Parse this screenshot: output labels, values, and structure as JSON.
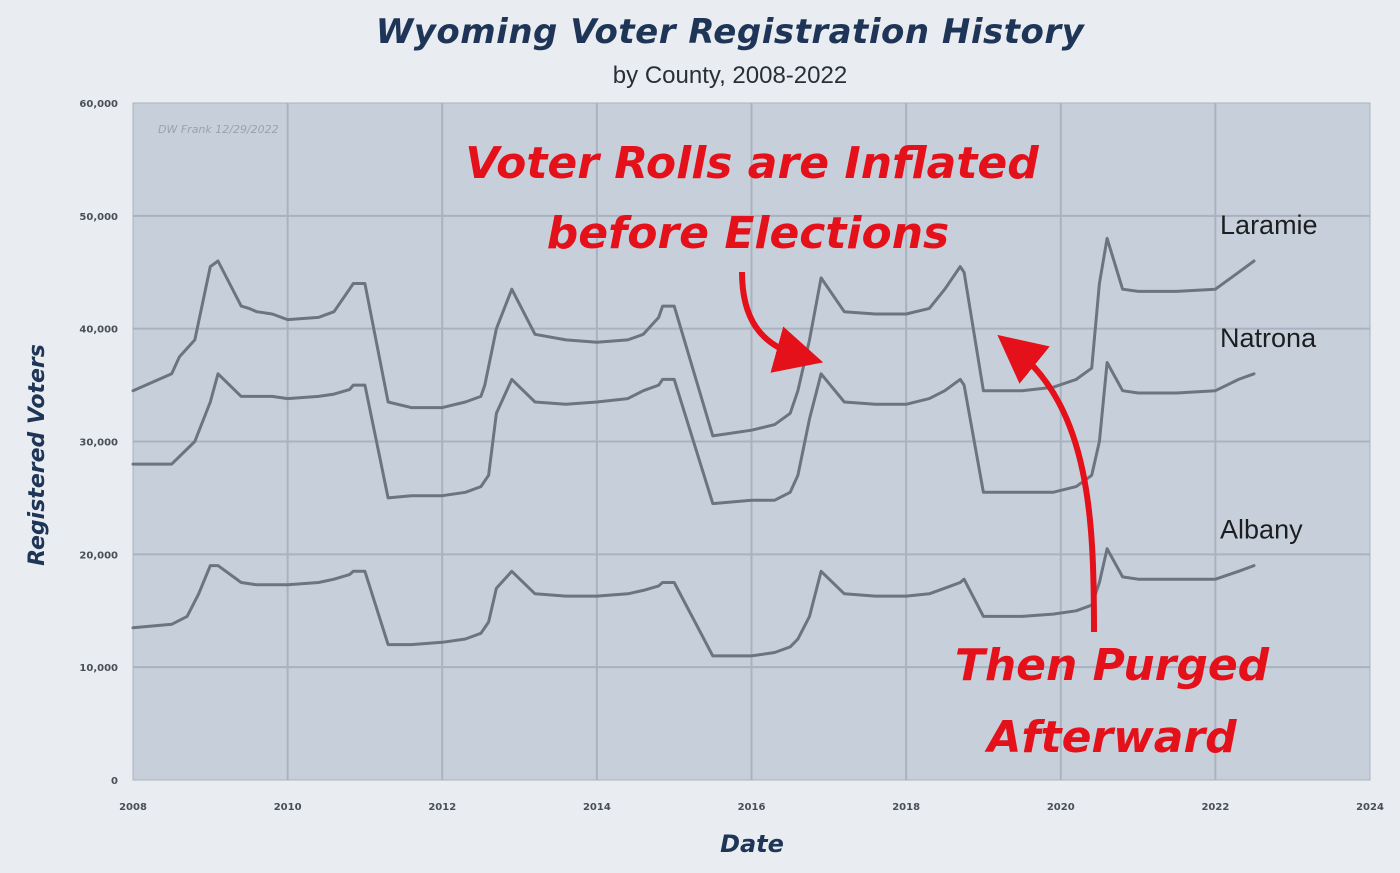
{
  "chart_data": {
    "type": "line",
    "title": "Wyoming Voter Registration History",
    "subtitle": "by County, 2008-2022",
    "xlabel": "Date",
    "ylabel": "Registered Voters",
    "x_ticks": [
      "2008",
      "2010",
      "2012",
      "2014",
      "2016",
      "2018",
      "2020",
      "2022",
      "2024"
    ],
    "y_ticks": [
      "0",
      "10,000",
      "20,000",
      "30,000",
      "40,000",
      "50,000",
      "60,000"
    ],
    "xlim": [
      2008,
      2024
    ],
    "ylim": [
      0,
      60000
    ],
    "grid": true,
    "note": "DW Frank 12/29/2022",
    "series": [
      {
        "name": "Laramie",
        "x": [
          2008.0,
          2008.5,
          2008.6,
          2008.8,
          2009.0,
          2009.1,
          2009.4,
          2009.5,
          2009.6,
          2009.8,
          2010.0,
          2010.4,
          2010.6,
          2010.8,
          2010.85,
          2011.0,
          2011.3,
          2011.6,
          2012.0,
          2012.3,
          2012.5,
          2012.55,
          2012.7,
          2012.9,
          2013.2,
          2013.6,
          2014.0,
          2014.4,
          2014.6,
          2014.8,
          2014.85,
          2015.0,
          2015.5,
          2016.0,
          2016.3,
          2016.5,
          2016.6,
          2016.75,
          2016.9,
          2017.2,
          2017.6,
          2018.0,
          2018.3,
          2018.5,
          2018.7,
          2018.75,
          2019.0,
          2019.5,
          2019.9,
          2020.2,
          2020.4,
          2020.5,
          2020.6,
          2020.8,
          2021.0,
          2021.5,
          2022.0,
          2022.3,
          2022.5
        ],
        "values": [
          34500,
          36000,
          37500,
          39000,
          45500,
          46000,
          42000,
          41800,
          41500,
          41300,
          40800,
          41000,
          41500,
          43500,
          44000,
          44000,
          33500,
          33000,
          33000,
          33500,
          34000,
          35000,
          40000,
          43500,
          39500,
          39000,
          38800,
          39000,
          39500,
          41000,
          42000,
          42000,
          30500,
          31000,
          31500,
          32500,
          34500,
          39000,
          44500,
          41500,
          41300,
          41300,
          41800,
          43500,
          45500,
          45000,
          34500,
          34500,
          34800,
          35500,
          36500,
          44000,
          48000,
          43500,
          43300,
          43300,
          43500,
          45000,
          46000
        ]
      },
      {
        "name": "Natrona",
        "x": [
          2008.0,
          2008.5,
          2008.8,
          2009.0,
          2009.1,
          2009.4,
          2009.6,
          2009.8,
          2010.0,
          2010.4,
          2010.6,
          2010.8,
          2010.85,
          2011.0,
          2011.3,
          2011.6,
          2012.0,
          2012.3,
          2012.5,
          2012.6,
          2012.7,
          2012.9,
          2013.2,
          2013.6,
          2014.0,
          2014.4,
          2014.6,
          2014.8,
          2014.85,
          2015.0,
          2015.5,
          2016.0,
          2016.3,
          2016.5,
          2016.6,
          2016.75,
          2016.9,
          2017.2,
          2017.6,
          2018.0,
          2018.3,
          2018.5,
          2018.7,
          2018.75,
          2019.0,
          2019.5,
          2019.9,
          2020.2,
          2020.4,
          2020.5,
          2020.6,
          2020.8,
          2021.0,
          2021.5,
          2022.0,
          2022.3,
          2022.5
        ],
        "values": [
          28000,
          28000,
          30000,
          33500,
          36000,
          34000,
          34000,
          34000,
          33800,
          34000,
          34200,
          34600,
          35000,
          35000,
          25000,
          25200,
          25200,
          25500,
          26000,
          27000,
          32500,
          35500,
          33500,
          33300,
          33500,
          33800,
          34500,
          35000,
          35500,
          35500,
          24500,
          24800,
          24800,
          25500,
          27000,
          32000,
          36000,
          33500,
          33300,
          33300,
          33800,
          34500,
          35500,
          35000,
          25500,
          25500,
          25500,
          26000,
          27000,
          30000,
          37000,
          34500,
          34300,
          34300,
          34500,
          35500,
          36000
        ]
      },
      {
        "name": "Albany",
        "x": [
          2008.0,
          2008.5,
          2008.7,
          2008.85,
          2009.0,
          2009.1,
          2009.4,
          2009.6,
          2010.0,
          2010.4,
          2010.6,
          2010.8,
          2010.85,
          2011.0,
          2011.3,
          2011.6,
          2012.0,
          2012.3,
          2012.5,
          2012.6,
          2012.7,
          2012.9,
          2013.2,
          2013.6,
          2014.0,
          2014.4,
          2014.6,
          2014.8,
          2014.85,
          2015.0,
          2015.5,
          2016.0,
          2016.3,
          2016.5,
          2016.6,
          2016.75,
          2016.9,
          2017.2,
          2017.6,
          2018.0,
          2018.3,
          2018.5,
          2018.7,
          2018.75,
          2019.0,
          2019.5,
          2019.9,
          2020.2,
          2020.4,
          2020.5,
          2020.6,
          2020.8,
          2021.0,
          2021.5,
          2022.0,
          2022.3,
          2022.5
        ],
        "values": [
          13500,
          13800,
          14500,
          16500,
          19000,
          19000,
          17500,
          17300,
          17300,
          17500,
          17800,
          18200,
          18500,
          18500,
          12000,
          12000,
          12200,
          12500,
          13000,
          14000,
          17000,
          18500,
          16500,
          16300,
          16300,
          16500,
          16800,
          17200,
          17500,
          17500,
          11000,
          11000,
          11300,
          11800,
          12500,
          14500,
          18500,
          16500,
          16300,
          16300,
          16500,
          17000,
          17500,
          17800,
          14500,
          14500,
          14700,
          15000,
          15500,
          17500,
          20500,
          18000,
          17800,
          17800,
          17800,
          18500,
          19000
        ]
      }
    ],
    "annotations": {
      "inflated": [
        "Voter Rolls are Inflated",
        "before Elections"
      ],
      "purged": [
        "Then Purged",
        "Afterward"
      ]
    },
    "colors": {
      "line": "#6c7480",
      "annotation": "#e4101a",
      "plot_bg": "#c7d0da",
      "grid": "#a9b3bf"
    }
  }
}
